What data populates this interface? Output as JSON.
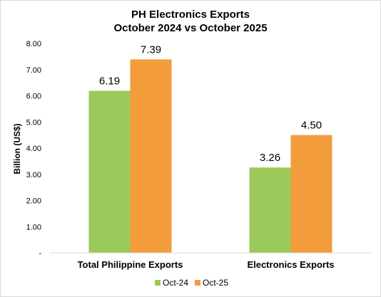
{
  "chart_data": {
    "type": "bar",
    "title": "PH Electronics Exports",
    "subtitle": "October 2024 vs October 2025",
    "ylabel": "Billion (US$)",
    "xlabel": "",
    "categories": [
      "Total Philippine Exports",
      "Electronics Exports"
    ],
    "series": [
      {
        "name": "Oct-24",
        "color": "#9BC95A",
        "values": [
          6.19,
          3.26
        ],
        "labels": [
          "6.19",
          "3.26"
        ]
      },
      {
        "name": "Oct-25",
        "color": "#F39C3C",
        "values": [
          7.39,
          4.5
        ],
        "labels": [
          "7.39",
          "4.50"
        ]
      }
    ],
    "ylim": [
      0,
      8
    ],
    "yticks": [
      0,
      1,
      2,
      3,
      4,
      5,
      6,
      7,
      8
    ],
    "ytick_labels": [
      "-",
      "1.00",
      "2.00",
      "3.00",
      "4.00",
      "5.00",
      "6.00",
      "7.00",
      "8.00"
    ],
    "grid": false,
    "legend_position": "bottom"
  }
}
